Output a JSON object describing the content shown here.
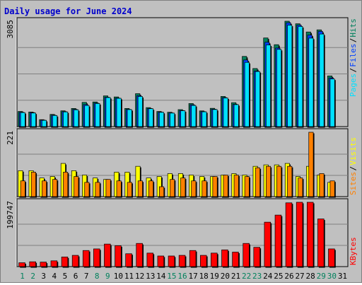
{
  "title": "Daily usage for June 2024",
  "colors": {
    "title": "#0000cc",
    "background": "#c0c0c0",
    "hits": "#00805c",
    "files": "#0040ff",
    "pages": "#00e0ff",
    "visits": "#ffff00",
    "sites": "#ff8000",
    "kbytes": "#ff0000",
    "weekend_day": "#00805c",
    "weekday": "#000000"
  },
  "chart_data": [
    {
      "type": "bar",
      "name": "hits-files-pages",
      "ytick_label": "3085",
      "ylim": [
        0,
        3085
      ],
      "legend": [
        "Pages",
        "/",
        "Files",
        "/",
        "Hits"
      ],
      "categories": [
        "1",
        "2",
        "3",
        "4",
        "5",
        "6",
        "7",
        "8",
        "9",
        "10",
        "11",
        "12",
        "13",
        "14",
        "15",
        "16",
        "17",
        "18",
        "19",
        "20",
        "21",
        "22",
        "23",
        "24",
        "25",
        "26",
        "27",
        "28",
        "29",
        "30",
        "31"
      ],
      "series": [
        {
          "name": "Hits",
          "values": [
            443,
            426,
            203,
            357,
            462,
            531,
            709,
            721,
            899,
            868,
            531,
            964,
            556,
            443,
            420,
            497,
            675,
            460,
            535,
            882,
            700,
            2055,
            1700,
            2595,
            2398,
            3085,
            3010,
            2770,
            2832,
            1484,
            0
          ]
        },
        {
          "name": "Files",
          "values": [
            420,
            410,
            190,
            335,
            440,
            505,
            645,
            690,
            860,
            835,
            505,
            905,
            530,
            425,
            400,
            470,
            640,
            440,
            510,
            850,
            650,
            1950,
            1630,
            2470,
            2300,
            3040,
            2970,
            2680,
            2788,
            1424,
            0
          ]
        },
        {
          "name": "Pages",
          "values": [
            410,
            398,
            183,
            325,
            430,
            492,
            618,
            676,
            850,
            828,
            498,
            882,
            524,
            418,
            395,
            464,
            619,
            433,
            500,
            838,
            643,
            1880,
            1613,
            2390,
            2260,
            2970,
            2930,
            2590,
            2710,
            1394,
            0
          ]
        }
      ]
    },
    {
      "type": "bar",
      "name": "visits-sites",
      "ytick_label": "221",
      "ylim": [
        0,
        221
      ],
      "legend": [
        "Sites",
        "/",
        "Visits"
      ],
      "categories": [
        "1",
        "2",
        "3",
        "4",
        "5",
        "6",
        "7",
        "8",
        "9",
        "10",
        "11",
        "12",
        "13",
        "14",
        "15",
        "16",
        "17",
        "18",
        "19",
        "20",
        "21",
        "22",
        "23",
        "24",
        "25",
        "26",
        "27",
        "28",
        "29",
        "30",
        "31"
      ],
      "series": [
        {
          "name": "Visits",
          "values": [
            89,
            89,
            64,
            69,
            114,
            89,
            74,
            64,
            59,
            84,
            84,
            104,
            64,
            69,
            79,
            79,
            74,
            69,
            69,
            74,
            79,
            74,
            104,
            109,
            109,
            114,
            69,
            104,
            74,
            49,
            0
          ]
        },
        {
          "name": "Sites",
          "values": [
            54,
            84,
            54,
            59,
            84,
            69,
            49,
            49,
            59,
            54,
            49,
            54,
            54,
            34,
            59,
            64,
            54,
            54,
            69,
            74,
            74,
            69,
            99,
            104,
            104,
            104,
            64,
            221,
            79,
            54,
            0
          ]
        }
      ]
    },
    {
      "type": "bar",
      "name": "kbytes",
      "ytick_label": "199747",
      "ylim": [
        0,
        199747
      ],
      "legend": [
        "KBytes"
      ],
      "categories": [
        "1",
        "2",
        "3",
        "4",
        "5",
        "6",
        "7",
        "8",
        "9",
        "10",
        "11",
        "12",
        "13",
        "14",
        "15",
        "16",
        "17",
        "18",
        "19",
        "20",
        "21",
        "22",
        "23",
        "24",
        "25",
        "26",
        "27",
        "28",
        "29",
        "30",
        "31"
      ],
      "series": [
        {
          "name": "KBytes",
          "values": [
            12000,
            15000,
            14000,
            18000,
            30000,
            35000,
            50000,
            55000,
            70000,
            65000,
            40000,
            72000,
            42000,
            33000,
            33000,
            35000,
            50000,
            35000,
            42000,
            52000,
            45000,
            72000,
            60000,
            138000,
            160000,
            198000,
            199747,
            199747,
            148000,
            55000,
            0
          ]
        }
      ]
    }
  ],
  "days": [
    {
      "label": "1",
      "weekend": true
    },
    {
      "label": "2",
      "weekend": true
    },
    {
      "label": "3",
      "weekend": false
    },
    {
      "label": "4",
      "weekend": false
    },
    {
      "label": "5",
      "weekend": false
    },
    {
      "label": "6",
      "weekend": false
    },
    {
      "label": "7",
      "weekend": false
    },
    {
      "label": "8",
      "weekend": true
    },
    {
      "label": "9",
      "weekend": true
    },
    {
      "label": "10",
      "weekend": false
    },
    {
      "label": "11",
      "weekend": false
    },
    {
      "label": "12",
      "weekend": false
    },
    {
      "label": "13",
      "weekend": false
    },
    {
      "label": "14",
      "weekend": false
    },
    {
      "label": "15",
      "weekend": true
    },
    {
      "label": "16",
      "weekend": true
    },
    {
      "label": "17",
      "weekend": false
    },
    {
      "label": "18",
      "weekend": false
    },
    {
      "label": "19",
      "weekend": false
    },
    {
      "label": "20",
      "weekend": false
    },
    {
      "label": "21",
      "weekend": false
    },
    {
      "label": "22",
      "weekend": true
    },
    {
      "label": "23",
      "weekend": true
    },
    {
      "label": "24",
      "weekend": false
    },
    {
      "label": "25",
      "weekend": false
    },
    {
      "label": "26",
      "weekend": false
    },
    {
      "label": "27",
      "weekend": false
    },
    {
      "label": "28",
      "weekend": false
    },
    {
      "label": "29",
      "weekend": true
    },
    {
      "label": "30",
      "weekend": true
    },
    {
      "label": "31",
      "weekend": false
    }
  ]
}
